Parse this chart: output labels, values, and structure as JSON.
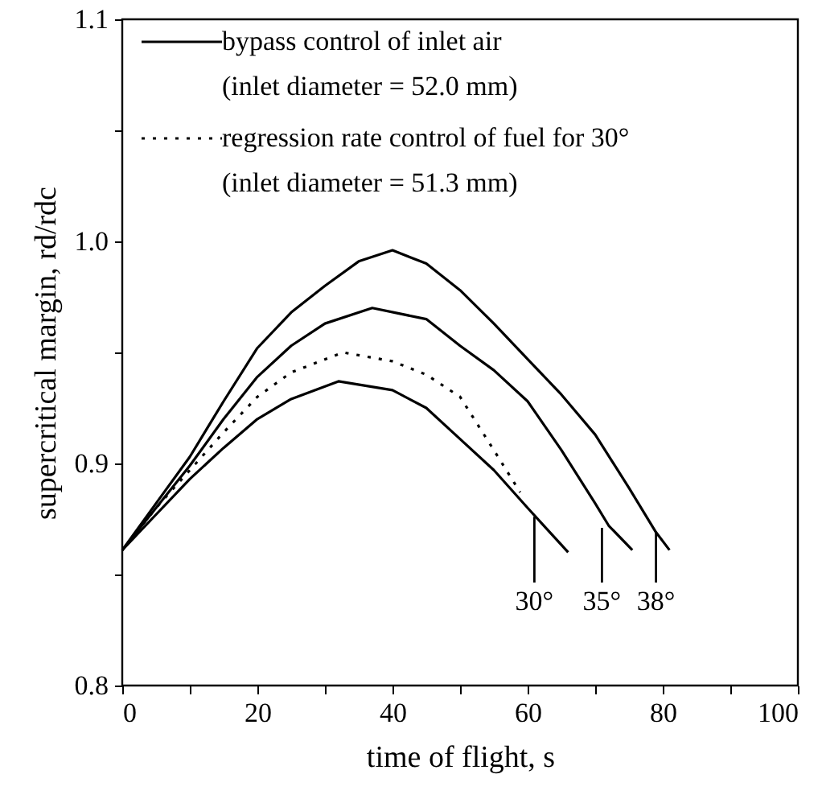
{
  "chart_data": {
    "type": "line",
    "xlabel": "time of flight, s",
    "ylabel": "supercritical margin, rd/rdc",
    "xlim": [
      0,
      100
    ],
    "ylim": [
      0.8,
      1.1
    ],
    "xticks": [
      0,
      {
        "value": 10,
        "label": null
      },
      20,
      {
        "value": 30,
        "label": null
      },
      40,
      {
        "value": 50,
        "label": null
      },
      60,
      {
        "value": 70,
        "label": null
      },
      80,
      {
        "value": 90,
        "label": null
      },
      100
    ],
    "yticks": [
      {
        "value": 0.8,
        "label": "0.8"
      },
      {
        "value": 0.85,
        "label": null
      },
      {
        "value": 0.9,
        "label": "0.9"
      },
      {
        "value": 0.95,
        "label": null
      },
      {
        "value": 1.0,
        "label": "1.0"
      },
      {
        "value": 1.05,
        "label": null
      },
      {
        "value": 1.1,
        "label": "1.1"
      }
    ],
    "grid": false,
    "legend": "top left",
    "marker": "none",
    "series": [
      {
        "name": "bypass control of inlet air\n(inlet diameter = 52.0 mm)",
        "color": "#000000",
        "line_style": "solid",
        "x": [
          0,
          5,
          10,
          15,
          20,
          25,
          30,
          35,
          40,
          45,
          50,
          55,
          60,
          65,
          70,
          75,
          79,
          81
        ],
        "values": [
          0.861,
          0.882,
          0.903,
          0.928,
          0.952,
          0.968,
          0.98,
          0.991,
          0.996,
          0.99,
          0.978,
          0.963,
          0.947,
          0.931,
          0.913,
          0.889,
          0.869,
          0.861
        ]
      },
      {
        "color": "#000000",
        "line_style": "solid",
        "x": [
          0,
          5,
          10,
          15,
          20,
          25,
          30,
          37,
          45,
          50,
          55,
          60,
          65,
          70,
          72,
          75.5
        ],
        "values": [
          0.861,
          0.88,
          0.899,
          0.92,
          0.939,
          0.953,
          0.963,
          0.97,
          0.965,
          0.953,
          0.942,
          0.928,
          0.906,
          0.882,
          0.872,
          0.861
        ]
      },
      {
        "name": "regression rate control of fuel for 30°\n(inlet diameter = 51.3 mm)",
        "color": "#000000",
        "line_style": "dotted",
        "x": [
          0,
          5,
          10,
          15,
          20,
          25,
          32.7,
          40,
          45,
          50,
          55,
          58.9
        ],
        "values": [
          0.861,
          0.88,
          0.897,
          0.914,
          0.93,
          0.941,
          0.95,
          0.946,
          0.94,
          0.93,
          0.906,
          0.887
        ]
      },
      {
        "color": "#000000",
        "line_style": "solid",
        "x": [
          0,
          5,
          10,
          15,
          20,
          25,
          32,
          40,
          45,
          50,
          55,
          60,
          63,
          66
        ],
        "values": [
          0.861,
          0.877,
          0.893,
          0.907,
          0.92,
          0.929,
          0.937,
          0.933,
          0.925,
          0.911,
          0.897,
          0.88,
          0.87,
          0.86
        ]
      }
    ],
    "annotations": [
      {
        "text": "30°",
        "x": 61,
        "y": 0.876
      },
      {
        "text": "35°",
        "x": 71,
        "y": 0.871
      },
      {
        "text": "38°",
        "x": 79,
        "y": 0.869
      }
    ]
  }
}
